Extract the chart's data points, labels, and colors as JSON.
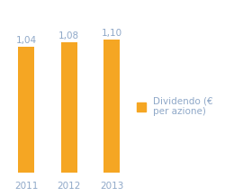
{
  "categories": [
    "2011",
    "2012",
    "2013"
  ],
  "values": [
    1.04,
    1.08,
    1.1
  ],
  "bar_color": "#F5A623",
  "value_labels": [
    "1,04",
    "1,08",
    "1,10"
  ],
  "legend_label": "Dividendo (€\nper azione)",
  "ylim": [
    0,
    1.3
  ],
  "background_color": "#ffffff",
  "bar_width": 0.38,
  "label_fontsize": 7.5,
  "tick_fontsize": 7.5,
  "legend_fontsize": 7.5,
  "label_color": "#8fa8c8",
  "tick_color": "#8fa8c8",
  "legend_color": "#8fa8c8"
}
